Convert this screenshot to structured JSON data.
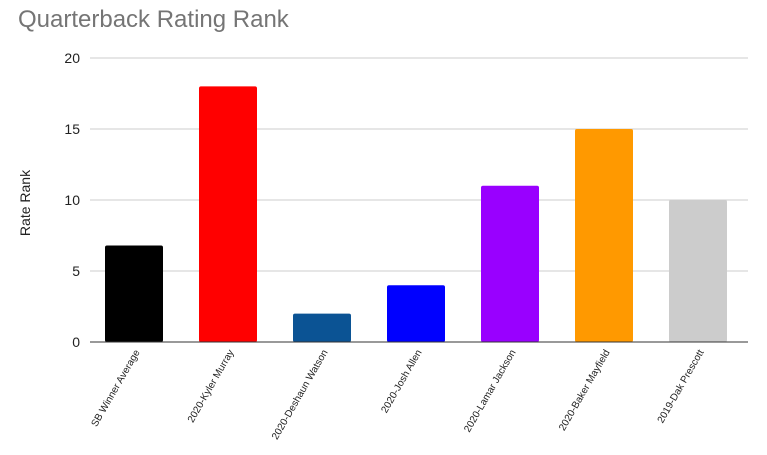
{
  "chart_data": {
    "type": "bar",
    "title": "Quarterback Rating Rank",
    "xlabel": "",
    "ylabel": "Rate Rank",
    "ylim": [
      0,
      20
    ],
    "yticks": [
      0,
      5,
      10,
      15,
      20
    ],
    "grid": true,
    "legend": "none",
    "categories": [
      "SB Winner Average",
      "2020-Kyler Murray",
      "2020-Deshaun Watson",
      "2020-Josh Allen",
      "2020-Lamar Jackson",
      "2020-Baker Mayfield",
      "2019-Dak Prescott"
    ],
    "values": [
      6.8,
      18,
      2,
      4,
      11,
      15,
      10
    ],
    "colors": [
      "#000000",
      "#ff0000",
      "#0b5394",
      "#0000ff",
      "#9900ff",
      "#ff9900",
      "#cccccc"
    ]
  }
}
